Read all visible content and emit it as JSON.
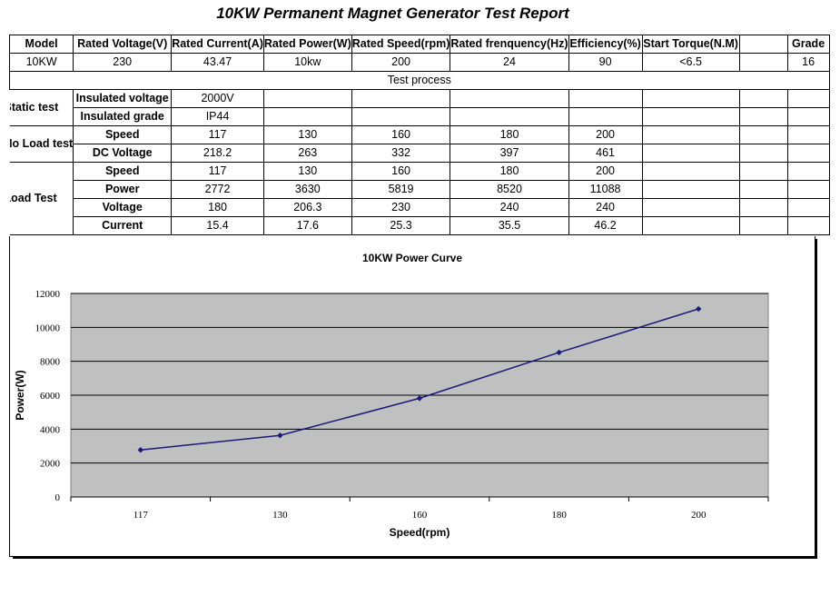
{
  "title": "10KW Permanent Magnet Generator Test Report",
  "spec_headers": [
    "Model",
    "Rated Voltage(V)",
    "Rated Current(A)",
    "Rated Power(W)",
    "Rated Speed(rpm)",
    "Rated frenquency(Hz)",
    "Efficiency(%)",
    "Start Torque(N.M)",
    "",
    "Grade"
  ],
  "spec_values": [
    "10KW",
    "230",
    "43.47",
    "10kw",
    "200",
    "24",
    "90",
    "<6.5",
    "",
    "16"
  ],
  "test_process_label": "Test process",
  "static_test": {
    "label": "Static test",
    "rows": [
      {
        "label": "Insulated voltage",
        "values": [
          "2000V"
        ]
      },
      {
        "label": "Insulated grade",
        "values": [
          "IP44"
        ]
      }
    ]
  },
  "no_load_test": {
    "label": "No Load test",
    "rows": [
      {
        "label": "Speed",
        "values": [
          "117",
          "130",
          "160",
          "180",
          "200"
        ]
      },
      {
        "label": "DC Voltage",
        "values": [
          "218.2",
          "263",
          "332",
          "397",
          "461"
        ]
      }
    ]
  },
  "load_test": {
    "label": "Load Test",
    "rows": [
      {
        "label": "Speed",
        "values": [
          "117",
          "130",
          "160",
          "180",
          "200"
        ]
      },
      {
        "label": "Power",
        "values": [
          "2772",
          "3630",
          "5819",
          "8520",
          "11088"
        ]
      },
      {
        "label": "Voltage",
        "values": [
          "180",
          "206.3",
          "230",
          "240",
          "240"
        ]
      },
      {
        "label": "Current",
        "values": [
          "15.4",
          "17.6",
          "25.3",
          "35.5",
          "46.2"
        ]
      }
    ]
  },
  "chart_data": {
    "type": "line",
    "title": "10KW Power Curve",
    "xlabel": "Speed(rpm)",
    "ylabel": "Power(W)",
    "categories": [
      "117",
      "130",
      "160",
      "180",
      "200"
    ],
    "values": [
      2772,
      3630,
      5819,
      8520,
      11088
    ],
    "ylim": [
      0,
      12000
    ],
    "yticks": [
      0,
      2000,
      4000,
      6000,
      8000,
      10000,
      12000
    ],
    "grid": true,
    "legend": "none",
    "colors": {
      "line": "#1a1a7a",
      "plot_bg": "#c0c0c0",
      "grid": "#000000"
    }
  }
}
